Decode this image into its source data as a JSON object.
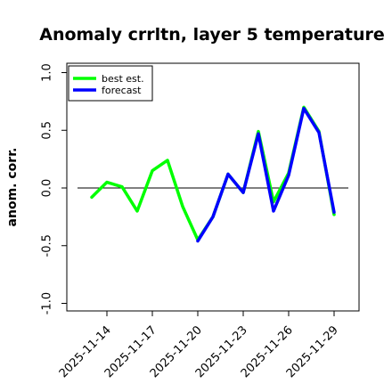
{
  "chart_data": {
    "type": "line",
    "title": "Anomaly crrltn, layer 5 temperature",
    "xlabel": "",
    "ylabel": "anom. corr.",
    "ylim": [
      -1.0,
      1.0
    ],
    "yticks": [
      -1.0,
      -0.5,
      0.0,
      0.5,
      1.0
    ],
    "ytick_labels": [
      "-1.0",
      "-0.5",
      "0.0",
      "0.5",
      "1.0"
    ],
    "zero_line": true,
    "legend_position": "top-left",
    "x_start_date": "2025-11-13",
    "xticks": [
      {
        "label": "2025-11-14",
        "color": "#000000"
      },
      {
        "label": "2025-11-17",
        "color": "#000000"
      },
      {
        "label": "2025-11-20",
        "color": "#2e8b2e"
      },
      {
        "label": "2025-11-23",
        "color": "#000000"
      },
      {
        "label": "2025-11-26",
        "color": "#000000"
      },
      {
        "label": "2025-11-29",
        "color": "#000000"
      }
    ],
    "series": [
      {
        "name": "best est.",
        "color": "#00ff00",
        "x": [
          "2025-11-13",
          "2025-11-14",
          "2025-11-15",
          "2025-11-16",
          "2025-11-17",
          "2025-11-18",
          "2025-11-19",
          "2025-11-20",
          "2025-11-21",
          "2025-11-22",
          "2025-11-23",
          "2025-11-24",
          "2025-11-25",
          "2025-11-26",
          "2025-11-27",
          "2025-11-28",
          "2025-11-29"
        ],
        "values": [
          -0.08,
          0.05,
          0.01,
          -0.2,
          0.15,
          0.24,
          -0.16,
          -0.45,
          -0.25,
          0.12,
          -0.04,
          0.49,
          -0.12,
          0.13,
          0.7,
          0.49,
          -0.23
        ]
      },
      {
        "name": "forecast",
        "color": "#0000ff",
        "x": [
          "2025-11-20",
          "2025-11-21",
          "2025-11-22",
          "2025-11-23",
          "2025-11-24",
          "2025-11-25",
          "2025-11-26",
          "2025-11-27",
          "2025-11-28",
          "2025-11-29"
        ],
        "values": [
          -0.46,
          -0.25,
          0.12,
          -0.04,
          0.47,
          -0.2,
          0.11,
          0.69,
          0.48,
          -0.21
        ]
      }
    ]
  }
}
